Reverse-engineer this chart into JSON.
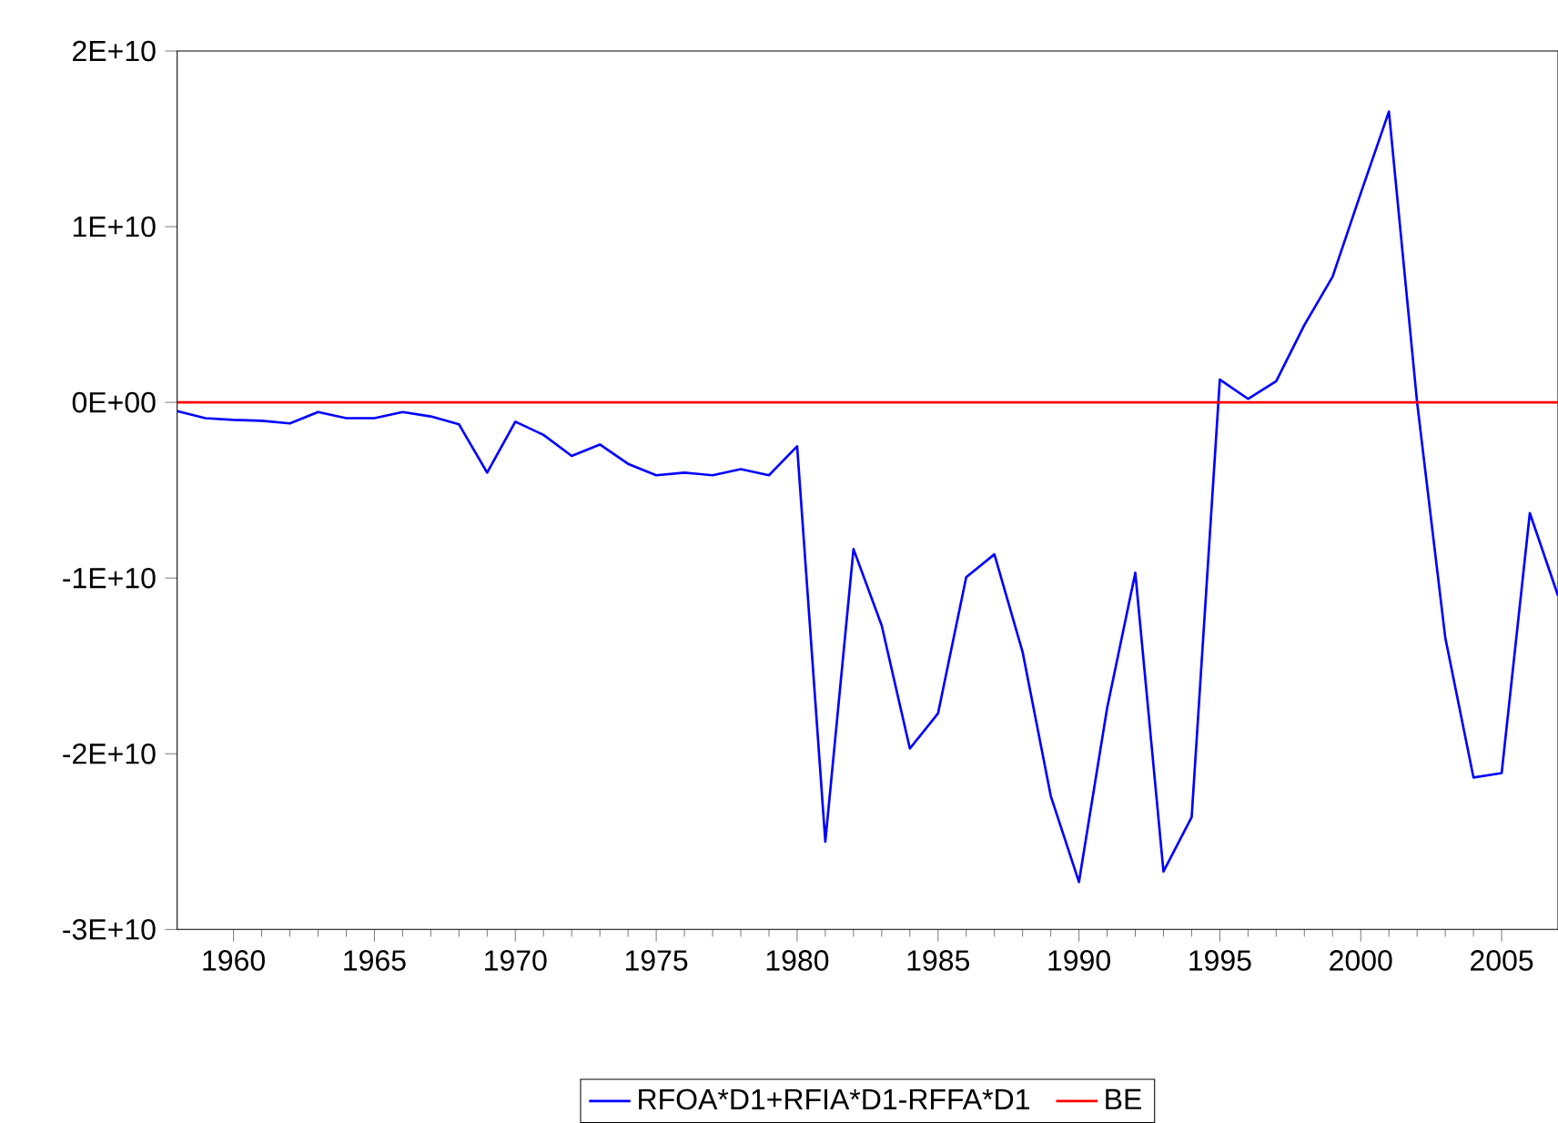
{
  "chart_data": {
    "type": "line",
    "x": [
      1958,
      1959,
      1960,
      1961,
      1962,
      1963,
      1964,
      1965,
      1966,
      1967,
      1968,
      1969,
      1970,
      1971,
      1972,
      1973,
      1974,
      1975,
      1976,
      1977,
      1978,
      1979,
      1980,
      1981,
      1982,
      1983,
      1984,
      1985,
      1986,
      1987,
      1988,
      1989,
      1990,
      1991,
      1992,
      1993,
      1994,
      1995,
      1996,
      1997,
      1998,
      1999,
      2000,
      2001,
      2002,
      2003,
      2004,
      2005,
      2006,
      2007
    ],
    "series": [
      {
        "name": "RFOA*D1+RFIA*D1-RFFA*D1",
        "color": "#0000ff",
        "values": [
          -500000000.0,
          -900000000.0,
          -1000000000.0,
          -1050000000.0,
          -1200000000.0,
          -550000000.0,
          -900000000.0,
          -900000000.0,
          -550000000.0,
          -800000000.0,
          -1250000000.0,
          -4000000000.0,
          -1100000000.0,
          -1850000000.0,
          -3050000000.0,
          -2400000000.0,
          -3500000000.0,
          -4150000000.0,
          -4000000000.0,
          -4150000000.0,
          -3800000000.0,
          -4150000000.0,
          -2500000000.0,
          -25000000000.0,
          -8350000000.0,
          -12700000000.0,
          -19700000000.0,
          -17700000000.0,
          -9950000000.0,
          -8650000000.0,
          -14200000000.0,
          -22400000000.0,
          -27300000000.0,
          -17400000000.0,
          -9700000000.0,
          -26700000000.0,
          -23600000000.0,
          1300000000.0,
          200000000.0,
          1200000000.0,
          4400000000.0,
          7150000000.0,
          11900000000.0,
          16550000000.0,
          0,
          -13400000000.0,
          -21350000000.0,
          -21100000000.0,
          -6300000000.0,
          -11000000000.0
        ]
      },
      {
        "name": "BE",
        "color": "#ff0000",
        "values": [
          0,
          0,
          0,
          0,
          0,
          0,
          0,
          0,
          0,
          0,
          0,
          0,
          0,
          0,
          0,
          0,
          0,
          0,
          0,
          0,
          0,
          0,
          0,
          0,
          0,
          0,
          0,
          0,
          0,
          0,
          0,
          0,
          0,
          0,
          0,
          0,
          0,
          0,
          0,
          0,
          0,
          0,
          0,
          0,
          0,
          0,
          0,
          0,
          0,
          0
        ]
      }
    ],
    "xlim": [
      1958,
      2007
    ],
    "ylim": [
      -30000000000.0,
      20000000000.0
    ],
    "xticks": [
      1960,
      1965,
      1970,
      1975,
      1980,
      1985,
      1990,
      1995,
      2000,
      2005
    ],
    "yticks": [
      {
        "value": -30000000000.0,
        "label": "-3E+10"
      },
      {
        "value": -20000000000.0,
        "label": "-2E+10"
      },
      {
        "value": -10000000000.0,
        "label": "-1E+10"
      },
      {
        "value": 0,
        "label": "0E+00"
      },
      {
        "value": 10000000000.0,
        "label": "1E+10"
      },
      {
        "value": 20000000000.0,
        "label": "2E+10"
      }
    ],
    "legend": "bottom",
    "grid": false,
    "marker": "none",
    "line_style": "solid"
  }
}
